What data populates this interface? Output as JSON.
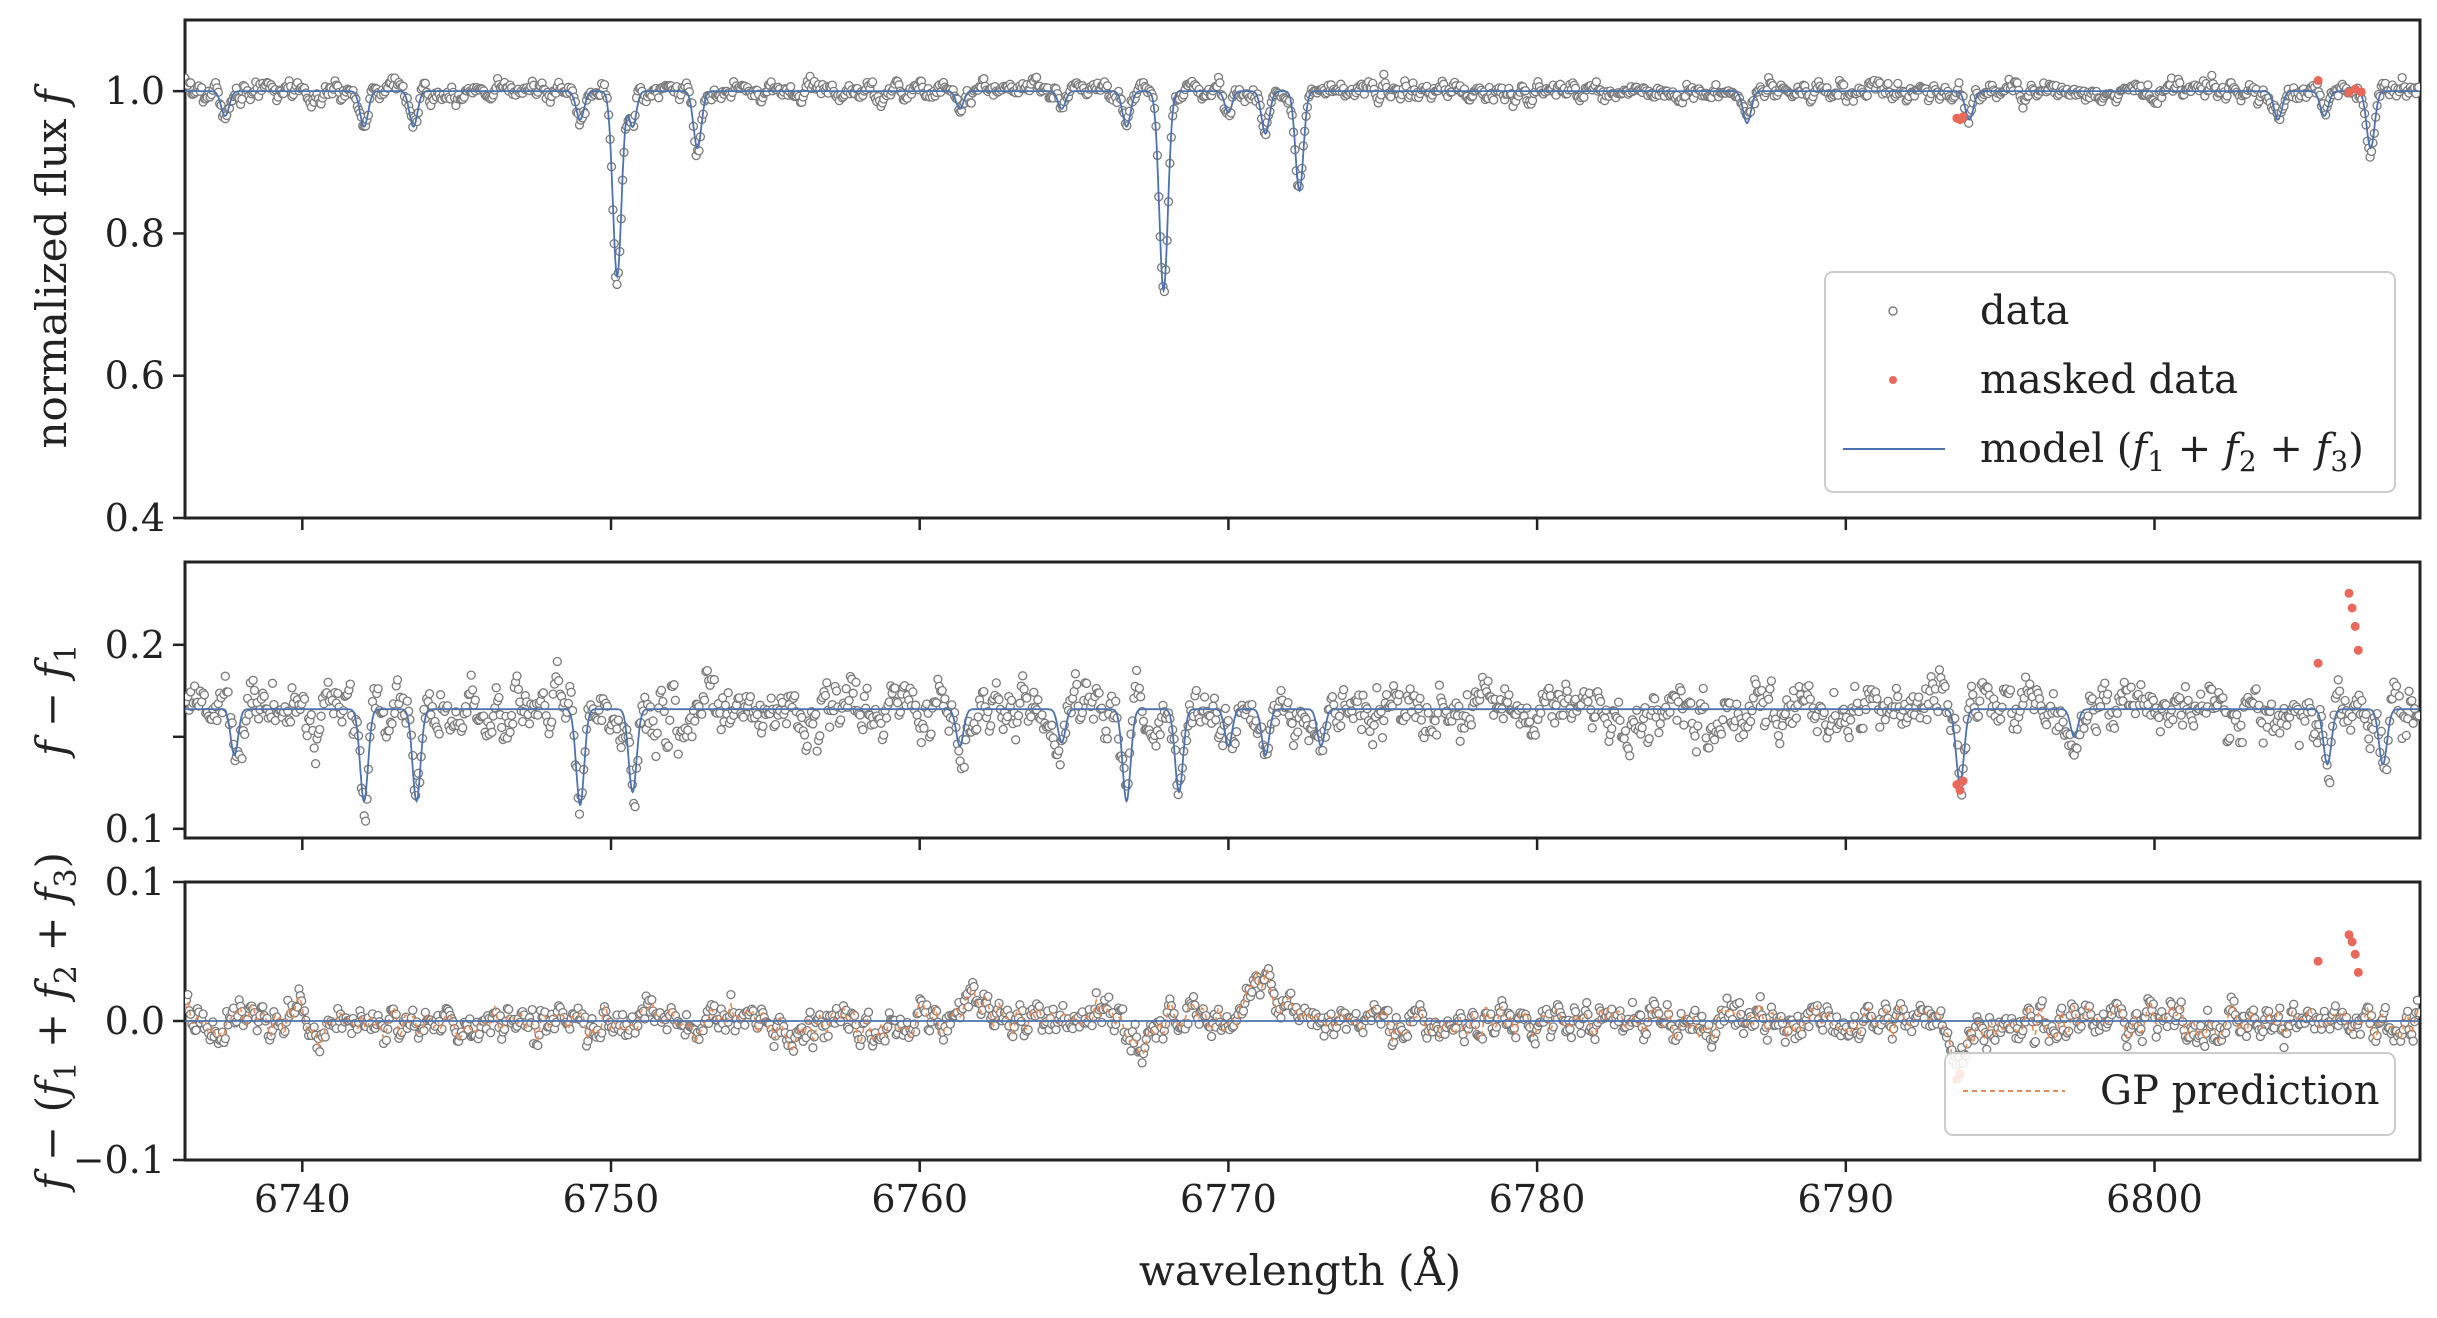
{
  "chart_data": [
    {
      "type": "scatter",
      "panel": "top",
      "ylabel": "normalized flux f",
      "ylim": [
        0.4,
        1.1
      ],
      "xlim": [
        6736.2,
        6808.6
      ],
      "yticks": [
        0.4,
        0.6,
        0.8,
        1.0
      ],
      "ytick_labels": [
        "0.4",
        "0.6",
        "0.8",
        "1.0"
      ],
      "baseline": 1.0,
      "noise": 0.009,
      "absorption_lines": [
        {
          "x": 6737.5,
          "depth": 0.035,
          "width": 0.13
        },
        {
          "x": 6742.0,
          "depth": 0.05,
          "width": 0.13
        },
        {
          "x": 6743.6,
          "depth": 0.05,
          "width": 0.13
        },
        {
          "x": 6749.0,
          "depth": 0.04,
          "width": 0.13
        },
        {
          "x": 6750.2,
          "depth": 0.26,
          "width": 0.14
        },
        {
          "x": 6750.7,
          "depth": 0.05,
          "width": 0.12
        },
        {
          "x": 6752.8,
          "depth": 0.08,
          "width": 0.13
        },
        {
          "x": 6761.3,
          "depth": 0.025,
          "width": 0.12
        },
        {
          "x": 6764.6,
          "depth": 0.025,
          "width": 0.12
        },
        {
          "x": 6766.7,
          "depth": 0.05,
          "width": 0.13
        },
        {
          "x": 6767.9,
          "depth": 0.28,
          "width": 0.14
        },
        {
          "x": 6770.0,
          "depth": 0.03,
          "width": 0.12
        },
        {
          "x": 6771.2,
          "depth": 0.06,
          "width": 0.13
        },
        {
          "x": 6772.3,
          "depth": 0.14,
          "width": 0.13
        },
        {
          "x": 6786.8,
          "depth": 0.045,
          "width": 0.13
        },
        {
          "x": 6794.0,
          "depth": 0.04,
          "width": 0.13
        },
        {
          "x": 6804.0,
          "depth": 0.04,
          "width": 0.13
        },
        {
          "x": 6805.5,
          "depth": 0.035,
          "width": 0.13
        },
        {
          "x": 6807.0,
          "depth": 0.08,
          "width": 0.13
        }
      ],
      "masked_points": [
        {
          "x": 6793.6,
          "y": 0.962
        },
        {
          "x": 6793.7,
          "y": 0.96
        },
        {
          "x": 6793.8,
          "y": 0.964
        },
        {
          "x": 6805.3,
          "y": 1.015
        },
        {
          "x": 6806.3,
          "y": 0.998
        },
        {
          "x": 6806.5,
          "y": 1.003
        },
        {
          "x": 6806.7,
          "y": 0.999
        }
      ],
      "legend": {
        "position": "lower-right",
        "entries": [
          {
            "label": "data",
            "kind": "marker"
          },
          {
            "label": "masked data",
            "kind": "masked-marker"
          },
          {
            "label": "model (",
            "math": "f1 + f2 + f3",
            "label_end": ")",
            "kind": "line"
          }
        ]
      }
    },
    {
      "type": "scatter",
      "panel": "middle",
      "ylabel": "f − f1",
      "ylim": [
        0.095,
        0.245
      ],
      "xlim": [
        6736.2,
        6808.6
      ],
      "yticks": [
        0.1,
        0.15,
        0.2
      ],
      "ytick_labels": [
        "0.1",
        "",
        "0.2"
      ],
      "baseline": 0.165,
      "noise": 0.01,
      "absorption_lines": [
        {
          "x": 6737.8,
          "depth": 0.025,
          "width": 0.12
        },
        {
          "x": 6742.0,
          "depth": 0.05,
          "width": 0.13
        },
        {
          "x": 6743.7,
          "depth": 0.05,
          "width": 0.13
        },
        {
          "x": 6749.0,
          "depth": 0.052,
          "width": 0.13
        },
        {
          "x": 6750.7,
          "depth": 0.045,
          "width": 0.13
        },
        {
          "x": 6761.3,
          "depth": 0.02,
          "width": 0.12
        },
        {
          "x": 6764.6,
          "depth": 0.018,
          "width": 0.12
        },
        {
          "x": 6766.7,
          "depth": 0.05,
          "width": 0.13
        },
        {
          "x": 6768.4,
          "depth": 0.045,
          "width": 0.13
        },
        {
          "x": 6770.0,
          "depth": 0.02,
          "width": 0.12
        },
        {
          "x": 6771.2,
          "depth": 0.025,
          "width": 0.12
        },
        {
          "x": 6773.0,
          "depth": 0.02,
          "width": 0.12
        },
        {
          "x": 6793.7,
          "depth": 0.04,
          "width": 0.13
        },
        {
          "x": 6797.4,
          "depth": 0.015,
          "width": 0.12
        },
        {
          "x": 6805.6,
          "depth": 0.03,
          "width": 0.13
        },
        {
          "x": 6807.4,
          "depth": 0.03,
          "width": 0.13
        }
      ],
      "masked_points": [
        {
          "x": 6793.6,
          "y": 0.124
        },
        {
          "x": 6793.7,
          "y": 0.121
        },
        {
          "x": 6793.8,
          "y": 0.126
        },
        {
          "x": 6805.3,
          "y": 0.19
        },
        {
          "x": 6806.3,
          "y": 0.228
        },
        {
          "x": 6806.4,
          "y": 0.22
        },
        {
          "x": 6806.5,
          "y": 0.21
        },
        {
          "x": 6806.6,
          "y": 0.197
        }
      ]
    },
    {
      "type": "scatter",
      "panel": "bottom",
      "ylabel": "f − (f1 + f2 + f3)",
      "ylim": [
        -0.1,
        0.1
      ],
      "xlim": [
        6736.2,
        6808.6
      ],
      "yticks": [
        -0.1,
        0.0,
        0.1
      ],
      "ytick_labels": [
        "−0.1",
        "0.0",
        "0.1"
      ],
      "xticks": [
        6740,
        6750,
        6760,
        6770,
        6780,
        6790,
        6800
      ],
      "xtick_labels": [
        "6740",
        "6750",
        "6760",
        "6770",
        "6780",
        "6790",
        "6800"
      ],
      "xlabel": "wavelength (Å)",
      "baseline": 0.0,
      "noise": 0.009,
      "bumps": [
        {
          "x": 6762.0,
          "amp": 0.015,
          "width": 0.6
        },
        {
          "x": 6767.2,
          "amp": -0.025,
          "width": 0.3
        },
        {
          "x": 6771.0,
          "amp": 0.03,
          "width": 0.5
        },
        {
          "x": 6793.7,
          "amp": -0.03,
          "width": 0.2
        }
      ],
      "masked_points": [
        {
          "x": 6793.6,
          "y": -0.042
        },
        {
          "x": 6793.7,
          "y": -0.038
        },
        {
          "x": 6805.3,
          "y": 0.043
        },
        {
          "x": 6806.3,
          "y": 0.062
        },
        {
          "x": 6806.4,
          "y": 0.057
        },
        {
          "x": 6806.5,
          "y": 0.048
        },
        {
          "x": 6806.6,
          "y": 0.035
        }
      ],
      "legend": {
        "position": "lower-right",
        "entries": [
          {
            "label": "GP prediction",
            "kind": "dashed-line"
          }
        ]
      }
    }
  ],
  "colors": {
    "data_edge": "#7a7a7a",
    "masked": "#e8685a",
    "model": "#4c72b0",
    "gp": "#e88a55",
    "axes": "#222222"
  }
}
